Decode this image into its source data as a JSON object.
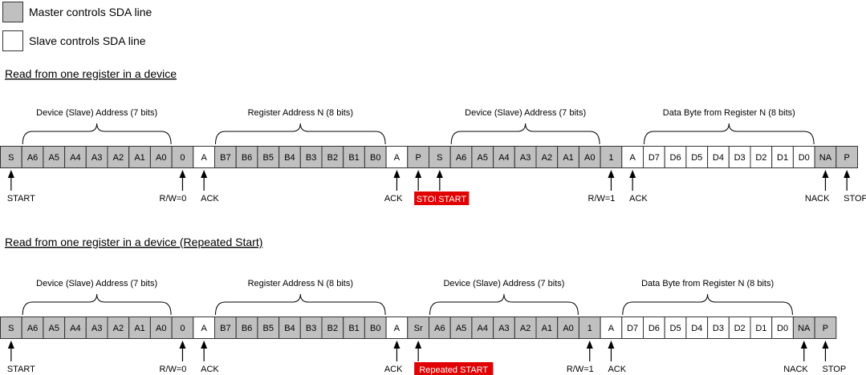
{
  "legend": [
    {
      "label": "Master controls SDA line",
      "color": "#c0c0c0"
    },
    {
      "label": "Slave controls SDA line",
      "color": "#ffffff"
    }
  ],
  "colors": {
    "master": "#c0c0c0",
    "slave": "#ffffff",
    "highlight": "#e00000"
  },
  "diagrams": [
    {
      "title": "Read from one register in a device",
      "cells": [
        {
          "t": "S",
          "m": 1
        },
        {
          "t": "A6",
          "m": 1
        },
        {
          "t": "A5",
          "m": 1
        },
        {
          "t": "A4",
          "m": 1
        },
        {
          "t": "A3",
          "m": 1
        },
        {
          "t": "A2",
          "m": 1
        },
        {
          "t": "A1",
          "m": 1
        },
        {
          "t": "A0",
          "m": 1
        },
        {
          "t": "0",
          "m": 1
        },
        {
          "t": "A",
          "m": 0
        },
        {
          "t": "B7",
          "m": 1
        },
        {
          "t": "B6",
          "m": 1
        },
        {
          "t": "B5",
          "m": 1
        },
        {
          "t": "B4",
          "m": 1
        },
        {
          "t": "B3",
          "m": 1
        },
        {
          "t": "B2",
          "m": 1
        },
        {
          "t": "B1",
          "m": 1
        },
        {
          "t": "B0",
          "m": 1
        },
        {
          "t": "A",
          "m": 0
        },
        {
          "t": "P",
          "m": 1
        },
        {
          "t": "S",
          "m": 1
        },
        {
          "t": "A6",
          "m": 1
        },
        {
          "t": "A5",
          "m": 1
        },
        {
          "t": "A4",
          "m": 1
        },
        {
          "t": "A3",
          "m": 1
        },
        {
          "t": "A2",
          "m": 1
        },
        {
          "t": "A1",
          "m": 1
        },
        {
          "t": "A0",
          "m": 1
        },
        {
          "t": "1",
          "m": 1
        },
        {
          "t": "A",
          "m": 0
        },
        {
          "t": "D7",
          "m": 0
        },
        {
          "t": "D6",
          "m": 0
        },
        {
          "t": "D5",
          "m": 0
        },
        {
          "t": "D4",
          "m": 0
        },
        {
          "t": "D3",
          "m": 0
        },
        {
          "t": "D2",
          "m": 0
        },
        {
          "t": "D1",
          "m": 0
        },
        {
          "t": "D0",
          "m": 0
        },
        {
          "t": "NA",
          "m": 1
        },
        {
          "t": "P",
          "m": 1
        }
      ],
      "braces": [
        {
          "label": "Device (Slave) Address (7 bits)",
          "from": 1,
          "to": 7
        },
        {
          "label": "Register Address N (8 bits)",
          "from": 10,
          "to": 17
        },
        {
          "label": "Device (Slave) Address (7 bits)",
          "from": 21,
          "to": 27
        },
        {
          "label": "Data Byte from Register N (8 bits)",
          "from": 30,
          "to": 37
        }
      ],
      "markers": [
        {
          "cell": 0,
          "label": "START"
        },
        {
          "cell": 8,
          "label": "R/W=0"
        },
        {
          "cell": 9,
          "label": "ACK"
        },
        {
          "cell": 18,
          "label": "ACK"
        },
        {
          "cell": 19,
          "label": "STOP",
          "red": true
        },
        {
          "cell": 20,
          "label": "START",
          "red": true
        },
        {
          "cell": 28,
          "label": "R/W=1"
        },
        {
          "cell": 29,
          "label": "ACK"
        },
        {
          "cell": 38,
          "label": "NACK"
        },
        {
          "cell": 39,
          "label": "STOP"
        }
      ]
    },
    {
      "title": "Read from one register in a device (Repeated Start)",
      "cells": [
        {
          "t": "S",
          "m": 1
        },
        {
          "t": "A6",
          "m": 1
        },
        {
          "t": "A5",
          "m": 1
        },
        {
          "t": "A4",
          "m": 1
        },
        {
          "t": "A3",
          "m": 1
        },
        {
          "t": "A2",
          "m": 1
        },
        {
          "t": "A1",
          "m": 1
        },
        {
          "t": "A0",
          "m": 1
        },
        {
          "t": "0",
          "m": 1
        },
        {
          "t": "A",
          "m": 0
        },
        {
          "t": "B7",
          "m": 1
        },
        {
          "t": "B6",
          "m": 1
        },
        {
          "t": "B5",
          "m": 1
        },
        {
          "t": "B4",
          "m": 1
        },
        {
          "t": "B3",
          "m": 1
        },
        {
          "t": "B2",
          "m": 1
        },
        {
          "t": "B1",
          "m": 1
        },
        {
          "t": "B0",
          "m": 1
        },
        {
          "t": "A",
          "m": 0
        },
        {
          "t": "Sr",
          "m": 1
        },
        {
          "t": "A6",
          "m": 1
        },
        {
          "t": "A5",
          "m": 1
        },
        {
          "t": "A4",
          "m": 1
        },
        {
          "t": "A3",
          "m": 1
        },
        {
          "t": "A2",
          "m": 1
        },
        {
          "t": "A1",
          "m": 1
        },
        {
          "t": "A0",
          "m": 1
        },
        {
          "t": "1",
          "m": 1
        },
        {
          "t": "A",
          "m": 0
        },
        {
          "t": "D7",
          "m": 0
        },
        {
          "t": "D6",
          "m": 0
        },
        {
          "t": "D5",
          "m": 0
        },
        {
          "t": "D4",
          "m": 0
        },
        {
          "t": "D3",
          "m": 0
        },
        {
          "t": "D2",
          "m": 0
        },
        {
          "t": "D1",
          "m": 0
        },
        {
          "t": "D0",
          "m": 0
        },
        {
          "t": "NA",
          "m": 1
        },
        {
          "t": "P",
          "m": 1
        }
      ],
      "braces": [
        {
          "label": "Device (Slave) Address (7 bits)",
          "from": 1,
          "to": 7
        },
        {
          "label": "Register Address N (8 bits)",
          "from": 10,
          "to": 17
        },
        {
          "label": "Device (Slave) Address (7 bits)",
          "from": 20,
          "to": 26
        },
        {
          "label": "Data Byte from Register N (8 bits)",
          "from": 29,
          "to": 36
        }
      ],
      "markers": [
        {
          "cell": 0,
          "label": "START"
        },
        {
          "cell": 8,
          "label": "R/W=0"
        },
        {
          "cell": 9,
          "label": "ACK"
        },
        {
          "cell": 18,
          "label": "ACK"
        },
        {
          "cell": 19,
          "label": "Repeated START",
          "red": true
        },
        {
          "cell": 27,
          "label": "R/W=1"
        },
        {
          "cell": 28,
          "label": "ACK"
        },
        {
          "cell": 37,
          "label": "NACK"
        },
        {
          "cell": 38,
          "label": "STOP"
        }
      ]
    }
  ]
}
